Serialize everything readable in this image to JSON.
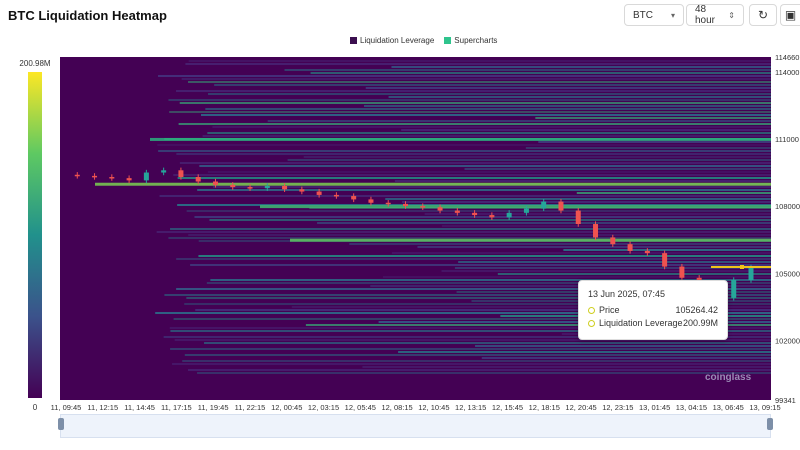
{
  "header": {
    "title": "BTC Liquidation Heatmap",
    "symbol_select": "BTC",
    "range_select": "48 hour",
    "refresh_icon": "refresh-icon",
    "screenshot_icon": "camera-icon"
  },
  "colors": {
    "plot_bg": "#440154",
    "liquidation_leverage": "#3b0f4f",
    "supercharts": "#2fc48d",
    "candle_up": "#26a69a",
    "candle_down": "#ef5350",
    "highlight": "#f0c419"
  },
  "tooltip": {
    "title": "13 Jun 2025, 07:45",
    "price_label": "Price",
    "price_value": "105264.42",
    "lev_label": "Liquidation Leverage",
    "lev_value": "200.99M"
  },
  "watermark": "coinglass",
  "chart_data": {
    "type": "heatmap",
    "title": "BTC Liquidation Heatmap",
    "legend": [
      "Liquidation Leverage",
      "Supercharts"
    ],
    "colorbar": {
      "min_label": "0",
      "max_label": "200.98M",
      "min": 0,
      "max": 200.98
    },
    "y_ticks": [
      114660,
      114000,
      111000,
      108000,
      105000,
      102000,
      99341
    ],
    "ylim": [
      99341,
      114660
    ],
    "x_ticks": [
      "11, 09:45",
      "11, 12:15",
      "11, 14:45",
      "11, 17:15",
      "11, 19:45",
      "11, 22:15",
      "12, 00:45",
      "12, 03:15",
      "12, 05:45",
      "12, 08:15",
      "12, 10:45",
      "12, 13:15",
      "12, 15:45",
      "12, 18:15",
      "12, 20:45",
      "12, 23:15",
      "13, 01:45",
      "13, 04:15",
      "13, 06:45",
      "13, 09:15"
    ],
    "price_series": [
      {
        "t": 0,
        "p": 109400
      },
      {
        "t": 1,
        "p": 109350
      },
      {
        "t": 2,
        "p": 109300
      },
      {
        "t": 3,
        "p": 109250
      },
      {
        "t": 4,
        "p": 109150
      },
      {
        "t": 5,
        "p": 109500
      },
      {
        "t": 6,
        "p": 109600
      },
      {
        "t": 7,
        "p": 109300
      },
      {
        "t": 8,
        "p": 109100
      },
      {
        "t": 9,
        "p": 108950
      },
      {
        "t": 10,
        "p": 108850
      },
      {
        "t": 11,
        "p": 108800
      },
      {
        "t": 12,
        "p": 108900
      },
      {
        "t": 13,
        "p": 108750
      },
      {
        "t": 14,
        "p": 108650
      },
      {
        "t": 15,
        "p": 108500
      },
      {
        "t": 16,
        "p": 108450
      },
      {
        "t": 17,
        "p": 108300
      },
      {
        "t": 18,
        "p": 108150
      },
      {
        "t": 19,
        "p": 108100
      },
      {
        "t": 20,
        "p": 108000
      },
      {
        "t": 21,
        "p": 107950
      },
      {
        "t": 22,
        "p": 107800
      },
      {
        "t": 23,
        "p": 107700
      },
      {
        "t": 24,
        "p": 107600
      },
      {
        "t": 25,
        "p": 107500
      },
      {
        "t": 26,
        "p": 107700
      },
      {
        "t": 27,
        "p": 107900
      },
      {
        "t": 28,
        "p": 108200
      },
      {
        "t": 29,
        "p": 107800
      },
      {
        "t": 30,
        "p": 107200
      },
      {
        "t": 31,
        "p": 106600
      },
      {
        "t": 32,
        "p": 106300
      },
      {
        "t": 33,
        "p": 106000
      },
      {
        "t": 34,
        "p": 105900
      },
      {
        "t": 35,
        "p": 105300
      },
      {
        "t": 36,
        "p": 104800
      },
      {
        "t": 37,
        "p": 104300
      },
      {
        "t": 38,
        "p": 103900
      },
      {
        "t": 39,
        "p": 104700
      },
      {
        "t": 40,
        "p": 105264
      }
    ]
  }
}
